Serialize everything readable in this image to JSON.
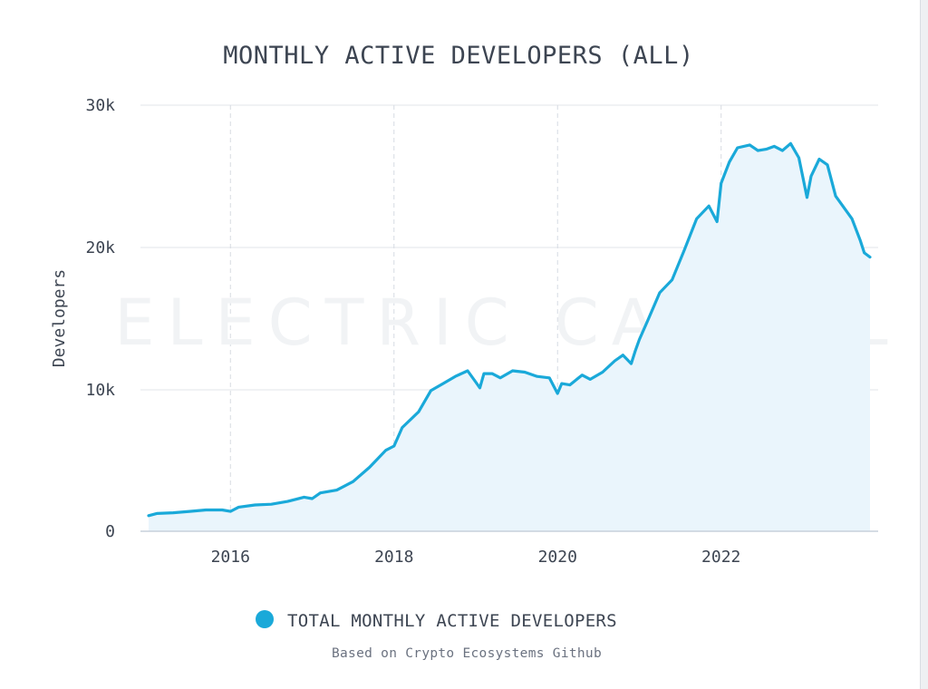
{
  "chart_data": {
    "type": "area",
    "title": "MONTHLY ACTIVE DEVELOPERS (ALL)",
    "ylabel": "Developers",
    "xlabel": "",
    "ylim": [
      0,
      30000
    ],
    "xlim": [
      2014.9,
      2023.92
    ],
    "y_ticks": [
      0,
      10000,
      20000,
      30000
    ],
    "y_tick_labels": [
      "0",
      "10k",
      "20k",
      "30k"
    ],
    "x_ticks": [
      2016,
      2018,
      2020,
      2022
    ],
    "x_tick_labels": [
      "2016",
      "2018",
      "2020",
      "2022"
    ],
    "grid": true,
    "legend_position": "bottom-center",
    "watermark": "ELECTRIC CAPITAL",
    "note": "Based on Crypto Ecosystems Github",
    "series": [
      {
        "name": "TOTAL MONTHLY ACTIVE DEVELOPERS",
        "color": "#1aa9d9",
        "fill": "#eaf5fc",
        "x": [
          2015.0,
          2015.1,
          2015.3,
          2015.5,
          2015.7,
          2015.9,
          2016.0,
          2016.1,
          2016.3,
          2016.5,
          2016.7,
          2016.9,
          2017.0,
          2017.1,
          2017.3,
          2017.5,
          2017.7,
          2017.9,
          2018.0,
          2018.1,
          2018.3,
          2018.45,
          2018.6,
          2018.75,
          2018.9,
          2019.0,
          2019.05,
          2019.1,
          2019.2,
          2019.3,
          2019.45,
          2019.6,
          2019.75,
          2019.9,
          2020.0,
          2020.05,
          2020.15,
          2020.3,
          2020.4,
          2020.55,
          2020.7,
          2020.8,
          2020.9,
          2020.95,
          2021.0,
          2021.1,
          2021.25,
          2021.4,
          2021.55,
          2021.7,
          2021.85,
          2021.95,
          2022.0,
          2022.1,
          2022.2,
          2022.35,
          2022.45,
          2022.55,
          2022.65,
          2022.75,
          2022.85,
          2022.95,
          2023.05,
          2023.1,
          2023.2,
          2023.3,
          2023.4,
          2023.5,
          2023.6,
          2023.7,
          2023.75,
          2023.82
        ],
        "y": [
          1100,
          1250,
          1300,
          1400,
          1500,
          1500,
          1400,
          1700,
          1850,
          1900,
          2100,
          2400,
          2300,
          2700,
          2900,
          3500,
          4500,
          5700,
          6000,
          7300,
          8400,
          9900,
          10400,
          10900,
          11300,
          10500,
          10100,
          11100,
          11100,
          10800,
          11300,
          11200,
          10900,
          10800,
          9700,
          10400,
          10300,
          11000,
          10700,
          11200,
          12000,
          12400,
          11800,
          12700,
          13500,
          14800,
          16800,
          17700,
          19800,
          22000,
          22900,
          21800,
          24500,
          26000,
          27000,
          27200,
          26800,
          26900,
          27100,
          26800,
          27300,
          26300,
          23500,
          25000,
          26200,
          25800,
          23600,
          22800,
          22000,
          20500,
          19600,
          19300
        ]
      }
    ]
  }
}
